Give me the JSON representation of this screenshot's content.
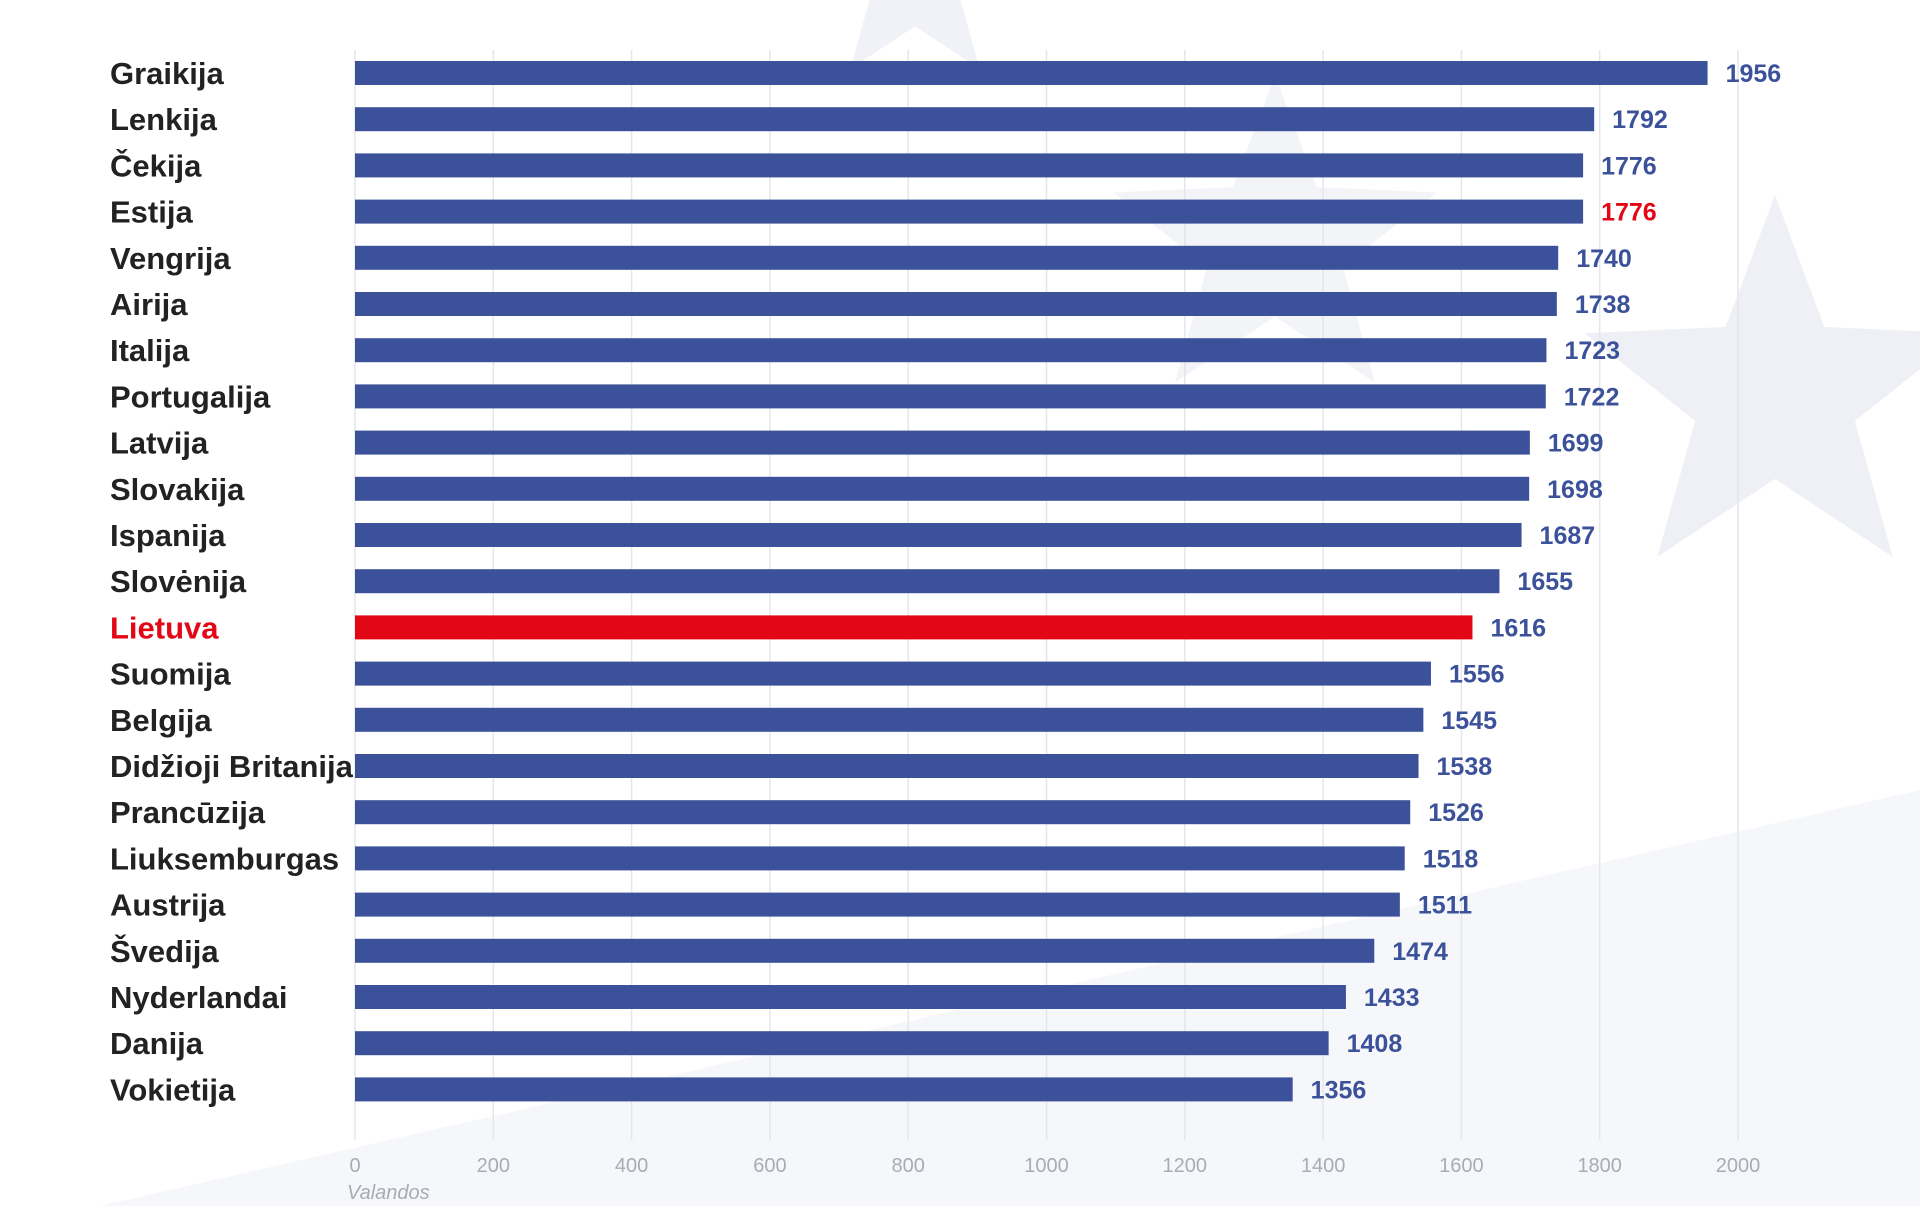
{
  "colors": {
    "bar": "#3b5199",
    "highlight": "#e30614",
    "value_text": "#3b5199",
    "category_text": "#222222",
    "grid": "#e4e6ec",
    "tick_text": "#a9acb6",
    "background_decor": "#eef0f6"
  },
  "chart_data": {
    "type": "bar",
    "orientation": "horizontal",
    "categories": [
      "Graikija",
      "Lenkija",
      "Čekija",
      "Estija",
      "Vengrija",
      "Airija",
      "Italija",
      "Portugalija",
      "Latvija",
      "Slovakija",
      "Ispanija",
      "Slovėnija",
      "Lietuva",
      "Suomija",
      "Belgija",
      "Didžioji Britanija",
      "Prancūzija",
      "Liuksemburgas",
      "Austrija",
      "Švedija",
      "Nyderlandai",
      "Danija",
      "Vokietija"
    ],
    "values": [
      1956,
      1792,
      1776,
      1776,
      1740,
      1738,
      1723,
      1722,
      1699,
      1698,
      1687,
      1655,
      1616,
      1556,
      1545,
      1538,
      1526,
      1518,
      1511,
      1474,
      1433,
      1408,
      1356
    ],
    "highlighted_category": "Lietuva",
    "highlighted_value_labels": [
      "Estija"
    ],
    "xlabel": "Valandos",
    "ylabel": "",
    "title": "",
    "xlim": [
      0,
      2000
    ],
    "xticks": [
      "0",
      "200",
      "400",
      "600",
      "800",
      "1000",
      "1200",
      "1400",
      "1600",
      "1800",
      "2000"
    ],
    "grid": "vertical",
    "legend": "none"
  }
}
